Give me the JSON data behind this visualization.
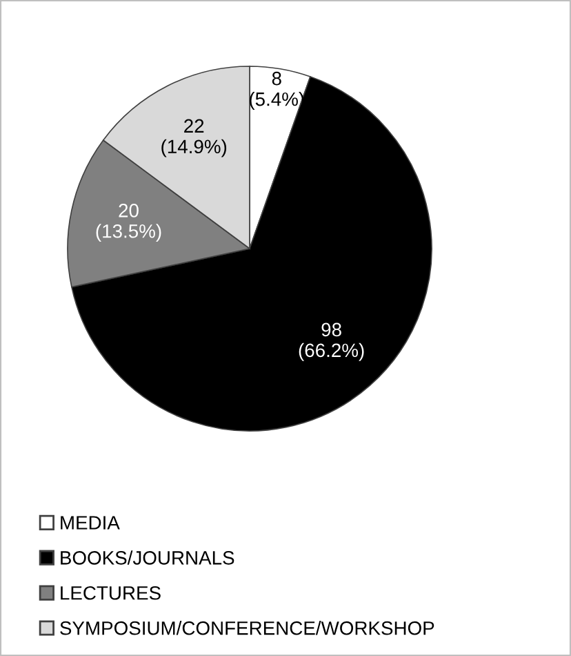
{
  "chart_data": {
    "type": "pie",
    "categories": [
      "MEDIA",
      "BOOKS/JOURNALS",
      "LECTURES",
      "SYMPOSIUM/CONFERENCE/WORKSHOP"
    ],
    "values": [
      8,
      98,
      20,
      22
    ],
    "colors": [
      "#ffffff",
      "#000000",
      "#808080",
      "#d9d9d9"
    ],
    "value_labels": [
      "8\n(5.4%)",
      "98\n(66.2%)",
      "20\n(13.5%)",
      "22\n(14.9%)"
    ],
    "legend": "bottom"
  }
}
